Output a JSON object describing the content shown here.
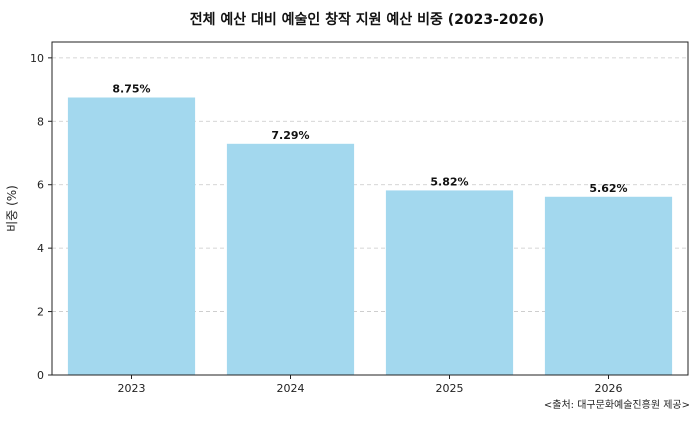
{
  "chart_data": {
    "type": "bar",
    "title": "전체 예산 대비 예술인 창작 지원 예산 비중 (2023-2026)",
    "xlabel": "",
    "ylabel": "비중 (%)",
    "categories": [
      "2023",
      "2024",
      "2025",
      "2026"
    ],
    "values": [
      8.75,
      7.29,
      5.82,
      5.62
    ],
    "data_labels": [
      "8.75%",
      "7.29%",
      "5.82%",
      "5.62%"
    ],
    "ylim": [
      0,
      10.5
    ],
    "yticks": [
      0,
      2,
      4,
      6,
      8,
      10
    ],
    "grid": "horizontal dashed",
    "bar_color": "#a3d8ee",
    "source_note": "<출처: 대구문화예술진흥원 제공>"
  }
}
